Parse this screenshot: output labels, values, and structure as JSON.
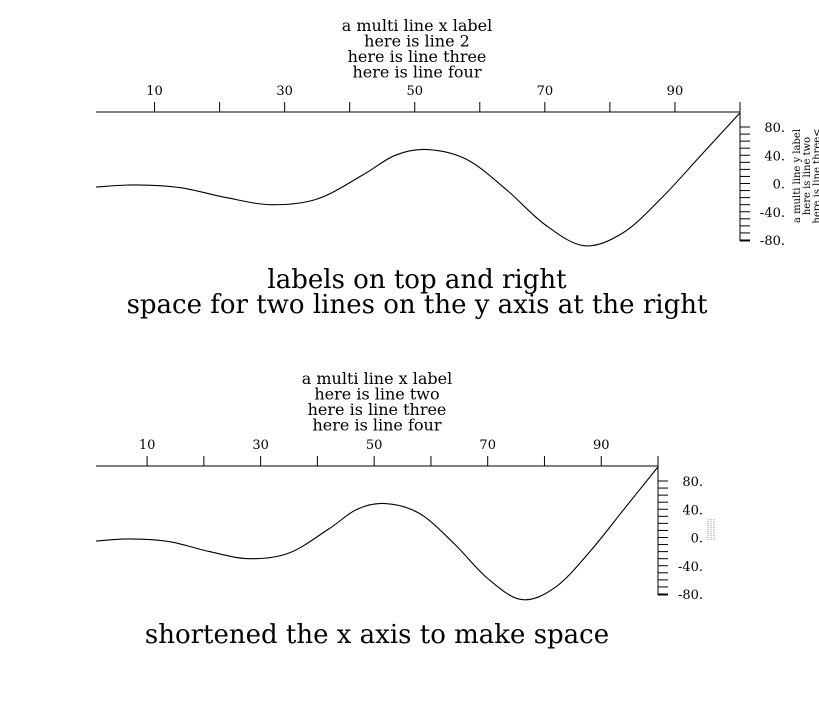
{
  "chart_data": [
    {
      "type": "line",
      "caption_lines": [
        "labels on top and right",
        "space for two lines on the y axis at the right"
      ],
      "xlabel_lines": [
        "a multi line x label",
        "here is line 2",
        "here is line three",
        "here is line four"
      ],
      "ylabel_lines": [
        "a multi line y label",
        "here is line two",
        "here is line three<"
      ],
      "x_axis_position": "top",
      "y_axis_position": "right",
      "x_tick_labels": [
        "10",
        "30",
        "50",
        "70",
        "90"
      ],
      "y_tick_labels": [
        "80.",
        "40.",
        "0.",
        "-40.",
        "-80."
      ],
      "xlim": [
        1,
        100
      ],
      "ylim": [
        -100,
        100
      ],
      "y_minor_step": 20,
      "x_minor_step": 10,
      "grid": false,
      "series": [
        {
          "x": [
            1,
            7,
            14,
            21,
            28,
            35,
            42,
            47,
            52,
            58,
            64,
            70,
            76,
            82,
            88,
            94,
            100
          ],
          "y": [
            -5,
            -2,
            -6,
            -20,
            -30,
            -22,
            12,
            40,
            48,
            34,
            -8,
            -58,
            -88,
            -70,
            -20,
            40,
            100
          ]
        }
      ]
    },
    {
      "type": "line",
      "caption_lines": [
        "shortened the x axis to make space"
      ],
      "xlabel_lines": [
        "a multi line x label",
        "here is line two",
        "here is line three",
        "here is line four"
      ],
      "ylabel_lines": [],
      "x_axis_position": "top",
      "y_axis_position": "right",
      "x_tick_labels": [
        "10",
        "30",
        "50",
        "70",
        "90"
      ],
      "y_tick_labels": [
        "80.",
        "40.",
        "0.",
        "-40.",
        "-80."
      ],
      "xlim": [
        1,
        100
      ],
      "ylim": [
        -100,
        100
      ],
      "y_minor_step": 20,
      "x_minor_step": 10,
      "grid": false,
      "series": [
        {
          "x": [
            1,
            7,
            14,
            21,
            28,
            35,
            42,
            47,
            52,
            58,
            64,
            70,
            76,
            82,
            88,
            94,
            100
          ],
          "y": [
            -5,
            -2,
            -6,
            -20,
            -30,
            -22,
            12,
            40,
            48,
            34,
            -8,
            -58,
            -88,
            -70,
            -20,
            40,
            100
          ]
        }
      ]
    }
  ]
}
